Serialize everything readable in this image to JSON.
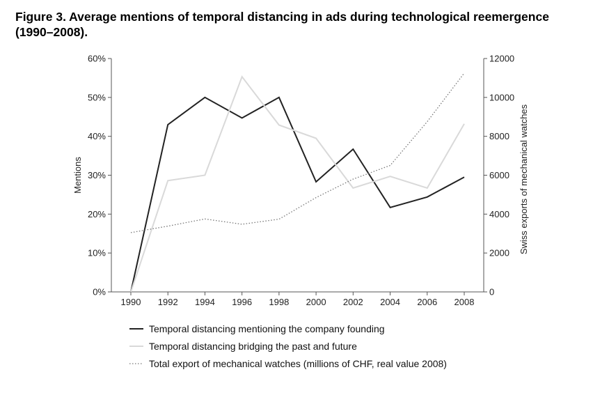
{
  "figure": {
    "title": "Figure 3.  Average mentions of temporal distancing in ads during technological reemergence (1990–2008)."
  },
  "chart_data": {
    "type": "line",
    "title": "Figure 3.  Average mentions of temporal distancing in ads during technological reemergence (1990–2008).",
    "xlabel": "",
    "ylabel": "Mentions",
    "y2label": "Swiss exports of mechanical watches",
    "x": [
      1990,
      1992,
      1994,
      1996,
      1998,
      2000,
      2002,
      2004,
      2006,
      2008
    ],
    "xticks": [
      "1990",
      "1992",
      "1994",
      "1996",
      "1998",
      "2000",
      "2002",
      "2004",
      "2006",
      "2008"
    ],
    "ylim": [
      0,
      60
    ],
    "yticks": [
      "0%",
      "10%",
      "20%",
      "30%",
      "40%",
      "50%",
      "60%"
    ],
    "y2lim": [
      0,
      12000
    ],
    "y2ticks": [
      "0",
      "2000",
      "4000",
      "6000",
      "8000",
      "10000",
      "12000"
    ],
    "grid": false,
    "legend_position": "bottom",
    "series": [
      {
        "name": "Temporal distancing mentioning the company founding",
        "axis": "left",
        "style": "solid",
        "color": "#222222",
        "values": [
          0,
          43,
          50,
          44.7,
          50,
          28.3,
          36.7,
          21.7,
          24.4,
          29.5
        ]
      },
      {
        "name": "Temporal distancing bridging the past and future",
        "axis": "left",
        "style": "solid",
        "color": "#d9d9d9",
        "values": [
          0,
          28.6,
          30,
          55.3,
          42.9,
          39.5,
          26.7,
          29.7,
          26.7,
          43.2
        ]
      },
      {
        "name": "Total export of mechanical watches (millions of CHF, real value 2008)",
        "axis": "right",
        "style": "dotted",
        "color": "#777777",
        "values": [
          3050,
          3380,
          3750,
          3480,
          3740,
          4850,
          5800,
          6500,
          8750,
          11250
        ]
      }
    ]
  }
}
